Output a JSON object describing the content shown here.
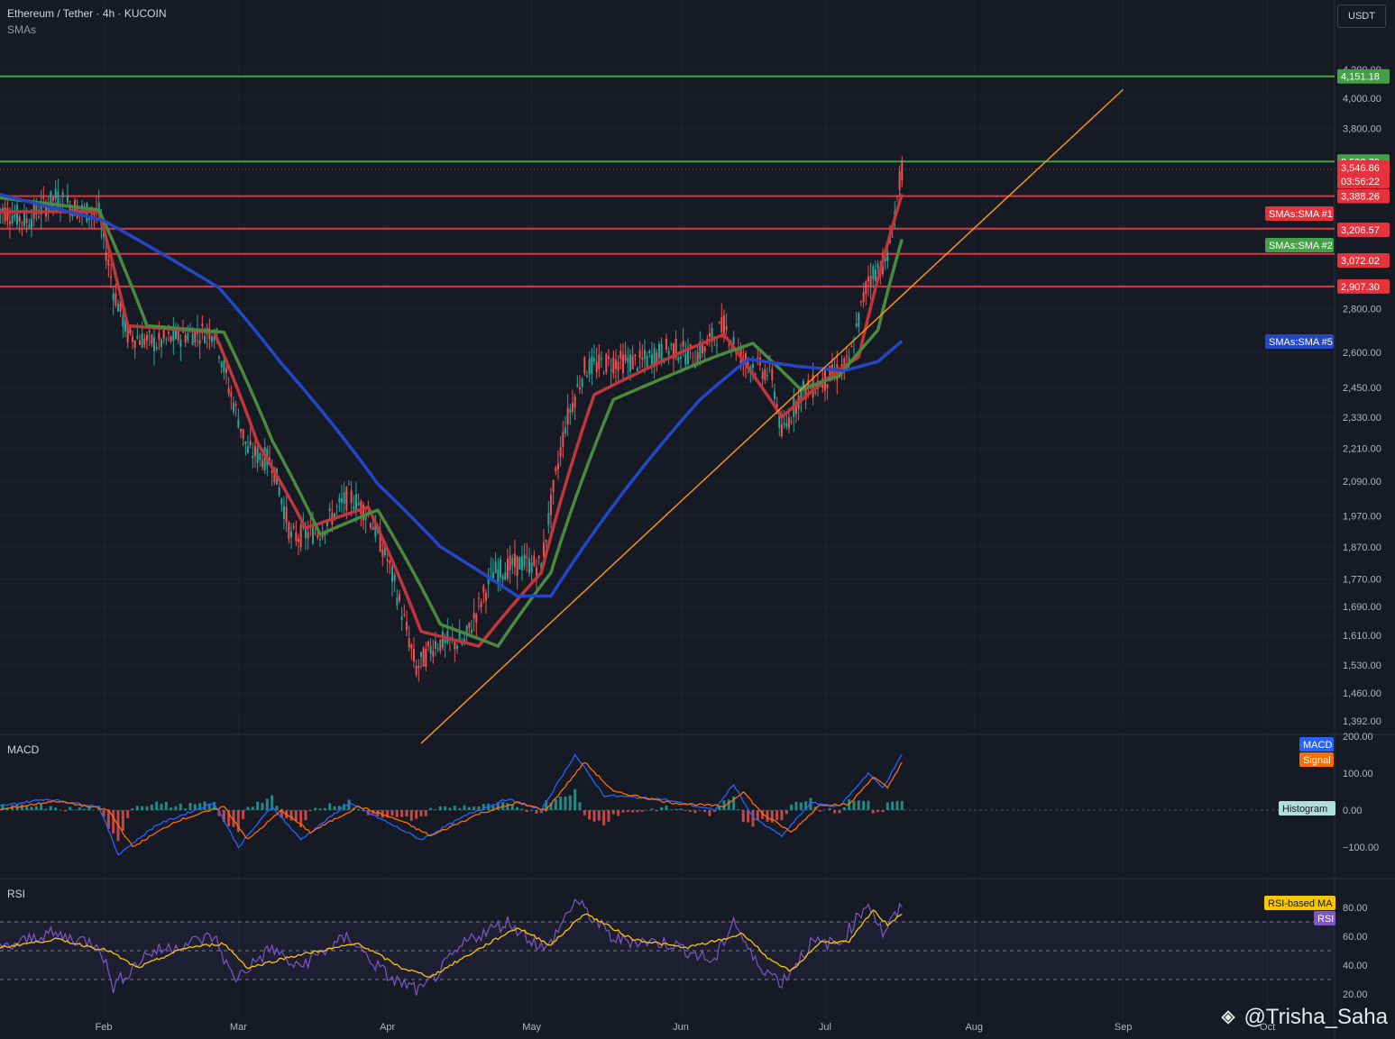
{
  "header": {
    "symbol_line": "Ethereum / Tether · 4h · KUCOIN",
    "indicator_line": "SMAs",
    "currency_button": "USDT"
  },
  "panes": {
    "macd_label": "MACD",
    "rsi_label": "RSI"
  },
  "watermark": {
    "text": "@Trisha_Saha",
    "icon": "binance-square-icon"
  },
  "colors": {
    "background": "#161a25",
    "grid": "#1f2330",
    "up": "#26a69a",
    "down": "#ef5350",
    "sma1": "#c2353a",
    "sma2": "#4a8a3f",
    "sma5": "#2447c8",
    "trendline": "#f7931a",
    "hline_red": "#e5323d",
    "hline_green": "#43a047",
    "macd": "#2962ff",
    "signal": "#ff6d00",
    "rsi": "#7e57c2",
    "rsi_ma": "#f7c600"
  },
  "chart_data": [
    {
      "type": "candlestick",
      "title": "Ethereum / Tether · 4h · KUCOIN",
      "x_ticks": [
        "Feb",
        "Mar",
        "Apr",
        "May",
        "Jun",
        "Jul",
        "Aug",
        "Sep",
        "Oct"
      ],
      "y_scale": "log",
      "y_ticks": [
        "4,200.00",
        "4,000.00",
        "3,800.00",
        "2,800.00",
        "2,600.00",
        "2,450.00",
        "2,330.00",
        "2,210.00",
        "2,090.00",
        "1,970.00",
        "1,870.00",
        "1,770.00",
        "1,690.00",
        "1,610.00",
        "1,530.00",
        "1,460.00",
        "1,392.00"
      ],
      "ylim": [
        1350,
        4250
      ],
      "close_path": [
        {
          "x": "Jan 10",
          "y": 3320
        },
        {
          "x": "Jan 16",
          "y": 3250
        },
        {
          "x": "Jan 22",
          "y": 3380
        },
        {
          "x": "Jan 28",
          "y": 3300
        },
        {
          "x": "Jan 31",
          "y": 3290
        },
        {
          "x": "Feb 3",
          "y": 2890
        },
        {
          "x": "Feb 6",
          "y": 2680
        },
        {
          "x": "Feb 12",
          "y": 2640
        },
        {
          "x": "Feb 18",
          "y": 2680
        },
        {
          "x": "Feb 24",
          "y": 2700
        },
        {
          "x": "Feb 27",
          "y": 2450
        },
        {
          "x": "Mar 3",
          "y": 2200
        },
        {
          "x": "Mar 8",
          "y": 2160
        },
        {
          "x": "Mar 12",
          "y": 1900
        },
        {
          "x": "Mar 18",
          "y": 1920
        },
        {
          "x": "Mar 24",
          "y": 2040
        },
        {
          "x": "Mar 28",
          "y": 1980
        },
        {
          "x": "Apr 1",
          "y": 1830
        },
        {
          "x": "Apr 7",
          "y": 1520
        },
        {
          "x": "Apr 11",
          "y": 1590
        },
        {
          "x": "Apr 17",
          "y": 1590
        },
        {
          "x": "Apr 23",
          "y": 1790
        },
        {
          "x": "Apr 29",
          "y": 1820
        },
        {
          "x": "May 3",
          "y": 1810
        },
        {
          "x": "May 8",
          "y": 2300
        },
        {
          "x": "May 12",
          "y": 2530
        },
        {
          "x": "May 18",
          "y": 2560
        },
        {
          "x": "May 24",
          "y": 2560
        },
        {
          "x": "May 30",
          "y": 2620
        },
        {
          "x": "Jun 4",
          "y": 2580
        },
        {
          "x": "Jun 10",
          "y": 2720
        },
        {
          "x": "Jun 14",
          "y": 2570
        },
        {
          "x": "Jun 20",
          "y": 2500
        },
        {
          "x": "Jun 22",
          "y": 2260
        },
        {
          "x": "Jun 26",
          "y": 2430
        },
        {
          "x": "Jul 1",
          "y": 2480
        },
        {
          "x": "Jul 6",
          "y": 2550
        },
        {
          "x": "Jul 10",
          "y": 2950
        },
        {
          "x": "Jul 14",
          "y": 3050
        },
        {
          "x": "Jul 17",
          "y": 3546.86
        }
      ],
      "series": [
        {
          "name": "SMAs:SMA #1",
          "points": [
            {
              "x": "Jan 10",
              "y": 3300
            },
            {
              "x": "Jan 31",
              "y": 3300
            },
            {
              "x": "Feb 6",
              "y": 2720
            },
            {
              "x": "Feb 24",
              "y": 2690
            },
            {
              "x": "Mar 5",
              "y": 2230
            },
            {
              "x": "Mar 15",
              "y": 1930
            },
            {
              "x": "Mar 28",
              "y": 2000
            },
            {
              "x": "Apr 8",
              "y": 1620
            },
            {
              "x": "Apr 20",
              "y": 1580
            },
            {
              "x": "May 3",
              "y": 1790
            },
            {
              "x": "May 14",
              "y": 2420
            },
            {
              "x": "Jun 1",
              "y": 2600
            },
            {
              "x": "Jun 10",
              "y": 2680
            },
            {
              "x": "Jun 22",
              "y": 2330
            },
            {
              "x": "Jul 1",
              "y": 2480
            },
            {
              "x": "Jul 8",
              "y": 2580
            },
            {
              "x": "Jul 17",
              "y": 3400
            }
          ]
        },
        {
          "name": "SMAs:SMA #2",
          "points": [
            {
              "x": "Jan 10",
              "y": 3380
            },
            {
              "x": "Jan 31",
              "y": 3310
            },
            {
              "x": "Feb 10",
              "y": 2720
            },
            {
              "x": "Feb 26",
              "y": 2690
            },
            {
              "x": "Mar 8",
              "y": 2240
            },
            {
              "x": "Mar 18",
              "y": 1910
            },
            {
              "x": "Mar 30",
              "y": 1990
            },
            {
              "x": "Apr 12",
              "y": 1640
            },
            {
              "x": "Apr 24",
              "y": 1580
            },
            {
              "x": "May 5",
              "y": 1790
            },
            {
              "x": "May 18",
              "y": 2400
            },
            {
              "x": "Jun 8",
              "y": 2580
            },
            {
              "x": "Jun 16",
              "y": 2640
            },
            {
              "x": "Jun 26",
              "y": 2440
            },
            {
              "x": "Jul 4",
              "y": 2500
            },
            {
              "x": "Jul 12",
              "y": 2700
            },
            {
              "x": "Jul 17",
              "y": 3150
            }
          ]
        },
        {
          "name": "SMAs:SMA #5",
          "points": [
            {
              "x": "Jan 10",
              "y": 3400
            },
            {
              "x": "Feb 1",
              "y": 3250
            },
            {
              "x": "Feb 25",
              "y": 2900
            },
            {
              "x": "Mar 10",
              "y": 2550
            },
            {
              "x": "Mar 30",
              "y": 2080
            },
            {
              "x": "Apr 12",
              "y": 1870
            },
            {
              "x": "Apr 28",
              "y": 1720
            },
            {
              "x": "May 5",
              "y": 1720
            },
            {
              "x": "May 20",
              "y": 2050
            },
            {
              "x": "Jun 5",
              "y": 2400
            },
            {
              "x": "Jun 15",
              "y": 2570
            },
            {
              "x": "Jun 25",
              "y": 2540
            },
            {
              "x": "Jul 5",
              "y": 2520
            },
            {
              "x": "Jul 12",
              "y": 2560
            },
            {
              "x": "Jul 17",
              "y": 2650
            }
          ]
        }
      ],
      "trendline": {
        "from": {
          "x": "Apr 8",
          "y": 1340
        },
        "to": {
          "x": "Sep 1",
          "y": 4060
        }
      },
      "horizontal_levels": [
        {
          "value": 4151.18,
          "label": "4,151.18",
          "color": "green"
        },
        {
          "value": 3592.79,
          "label": "3,592.79",
          "color": "green"
        },
        {
          "value": 3388.26,
          "label": "3,388.26",
          "color": "red"
        },
        {
          "value": 3206.57,
          "label": "3,206.57",
          "color": "red"
        },
        {
          "value": 3072.02,
          "label": "3,072.02",
          "color": "red"
        },
        {
          "value": 2907.3,
          "label": "2,907.30",
          "color": "red"
        }
      ],
      "last_price": {
        "value": 3546.86,
        "label": "3,546.86",
        "countdown": "03:56:22"
      },
      "legend_tags": [
        "SMAs:SMA #1",
        "SMAs:SMA #2",
        "SMAs:SMA #5"
      ]
    },
    {
      "type": "line",
      "title": "MACD",
      "y_ticks": [
        "200.00",
        "100.00",
        "0.00",
        "−100.00"
      ],
      "ylim": [
        -150,
        200
      ],
      "legend_tags": [
        "MACD",
        "Signal",
        "Histogram"
      ],
      "series": [
        {
          "name": "MACD",
          "points": [
            {
              "x": "Jan 10",
              "y": 10
            },
            {
              "x": "Jan 20",
              "y": 30
            },
            {
              "x": "Jan 31",
              "y": 10
            },
            {
              "x": "Feb 4",
              "y": -120
            },
            {
              "x": "Feb 12",
              "y": -40
            },
            {
              "x": "Feb 24",
              "y": 20
            },
            {
              "x": "Mar 1",
              "y": -100
            },
            {
              "x": "Mar 8",
              "y": 10
            },
            {
              "x": "Mar 14",
              "y": -80
            },
            {
              "x": "Mar 24",
              "y": 20
            },
            {
              "x": "Apr 2",
              "y": -40
            },
            {
              "x": "Apr 8",
              "y": -80
            },
            {
              "x": "Apr 18",
              "y": -10
            },
            {
              "x": "Apr 26",
              "y": 30
            },
            {
              "x": "May 3",
              "y": 0
            },
            {
              "x": "May 10",
              "y": 150
            },
            {
              "x": "May 16",
              "y": 40
            },
            {
              "x": "May 28",
              "y": 30
            },
            {
              "x": "Jun 8",
              "y": 0
            },
            {
              "x": "Jun 12",
              "y": 70
            },
            {
              "x": "Jun 16",
              "y": -20
            },
            {
              "x": "Jun 22",
              "y": -70
            },
            {
              "x": "Jun 28",
              "y": 20
            },
            {
              "x": "Jul 4",
              "y": 10
            },
            {
              "x": "Jul 10",
              "y": 100
            },
            {
              "x": "Jul 13",
              "y": 60
            },
            {
              "x": "Jul 17",
              "y": 150
            }
          ]
        },
        {
          "name": "Signal",
          "points": [
            {
              "x": "Jan 10",
              "y": 0
            },
            {
              "x": "Jan 22",
              "y": 25
            },
            {
              "x": "Feb 2",
              "y": 0
            },
            {
              "x": "Feb 7",
              "y": -100
            },
            {
              "x": "Feb 16",
              "y": -30
            },
            {
              "x": "Feb 26",
              "y": 10
            },
            {
              "x": "Mar 3",
              "y": -80
            },
            {
              "x": "Mar 10",
              "y": 0
            },
            {
              "x": "Mar 16",
              "y": -60
            },
            {
              "x": "Mar 26",
              "y": 10
            },
            {
              "x": "Apr 4",
              "y": -30
            },
            {
              "x": "Apr 10",
              "y": -70
            },
            {
              "x": "Apr 20",
              "y": -10
            },
            {
              "x": "Apr 28",
              "y": 20
            },
            {
              "x": "May 4",
              "y": 0
            },
            {
              "x": "May 12",
              "y": 130
            },
            {
              "x": "May 18",
              "y": 50
            },
            {
              "x": "May 30",
              "y": 20
            },
            {
              "x": "Jun 10",
              "y": 10
            },
            {
              "x": "Jun 14",
              "y": 50
            },
            {
              "x": "Jun 18",
              "y": -10
            },
            {
              "x": "Jun 24",
              "y": -60
            },
            {
              "x": "Jun 30",
              "y": 15
            },
            {
              "x": "Jul 6",
              "y": 15
            },
            {
              "x": "Jul 11",
              "y": 90
            },
            {
              "x": "Jul 14",
              "y": 60
            },
            {
              "x": "Jul 17",
              "y": 130
            }
          ]
        }
      ]
    },
    {
      "type": "line",
      "title": "RSI",
      "y_ticks": [
        "80.00",
        "60.00",
        "40.00",
        "20.00"
      ],
      "ylim": [
        15,
        95
      ],
      "bands": [
        70,
        50,
        30
      ],
      "legend_tags": [
        "RSI-based MA",
        "RSI"
      ],
      "series": [
        {
          "name": "RSI",
          "points": [
            {
              "x": "Jan 10",
              "y": 50
            },
            {
              "x": "Jan 20",
              "y": 62
            },
            {
              "x": "Jan 31",
              "y": 55
            },
            {
              "x": "Feb 3",
              "y": 25
            },
            {
              "x": "Feb 10",
              "y": 48
            },
            {
              "x": "Feb 24",
              "y": 60
            },
            {
              "x": "Feb 28",
              "y": 30
            },
            {
              "x": "Mar 8",
              "y": 52
            },
            {
              "x": "Mar 13",
              "y": 38
            },
            {
              "x": "Mar 24",
              "y": 60
            },
            {
              "x": "Mar 28",
              "y": 45
            },
            {
              "x": "Apr 2",
              "y": 30
            },
            {
              "x": "Apr 8",
              "y": 22
            },
            {
              "x": "Apr 18",
              "y": 58
            },
            {
              "x": "Apr 26",
              "y": 70
            },
            {
              "x": "May 4",
              "y": 50
            },
            {
              "x": "May 10",
              "y": 85
            },
            {
              "x": "May 18",
              "y": 58
            },
            {
              "x": "May 30",
              "y": 55
            },
            {
              "x": "Jun 8",
              "y": 42
            },
            {
              "x": "Jun 12",
              "y": 72
            },
            {
              "x": "Jun 16",
              "y": 44
            },
            {
              "x": "Jun 22",
              "y": 28
            },
            {
              "x": "Jun 28",
              "y": 55
            },
            {
              "x": "Jul 4",
              "y": 55
            },
            {
              "x": "Jul 10",
              "y": 84
            },
            {
              "x": "Jul 13",
              "y": 62
            },
            {
              "x": "Jul 17",
              "y": 80
            }
          ]
        },
        {
          "name": "RSI-based MA",
          "points": [
            {
              "x": "Jan 10",
              "y": 52
            },
            {
              "x": "Jan 22",
              "y": 58
            },
            {
              "x": "Feb 2",
              "y": 50
            },
            {
              "x": "Feb 8",
              "y": 38
            },
            {
              "x": "Feb 18",
              "y": 52
            },
            {
              "x": "Feb 26",
              "y": 55
            },
            {
              "x": "Mar 3",
              "y": 38
            },
            {
              "x": "Mar 12",
              "y": 46
            },
            {
              "x": "Mar 26",
              "y": 55
            },
            {
              "x": "Apr 4",
              "y": 38
            },
            {
              "x": "Apr 10",
              "y": 32
            },
            {
              "x": "Apr 22",
              "y": 55
            },
            {
              "x": "Apr 28",
              "y": 66
            },
            {
              "x": "May 5",
              "y": 54
            },
            {
              "x": "May 12",
              "y": 76
            },
            {
              "x": "May 22",
              "y": 58
            },
            {
              "x": "Jun 2",
              "y": 52
            },
            {
              "x": "Jun 10",
              "y": 58
            },
            {
              "x": "Jun 14",
              "y": 62
            },
            {
              "x": "Jun 20",
              "y": 42
            },
            {
              "x": "Jun 24",
              "y": 36
            },
            {
              "x": "Jun 30",
              "y": 56
            },
            {
              "x": "Jul 6",
              "y": 56
            },
            {
              "x": "Jul 11",
              "y": 78
            },
            {
              "x": "Jul 14",
              "y": 68
            },
            {
              "x": "Jul 17",
              "y": 76
            }
          ]
        }
      ]
    }
  ]
}
